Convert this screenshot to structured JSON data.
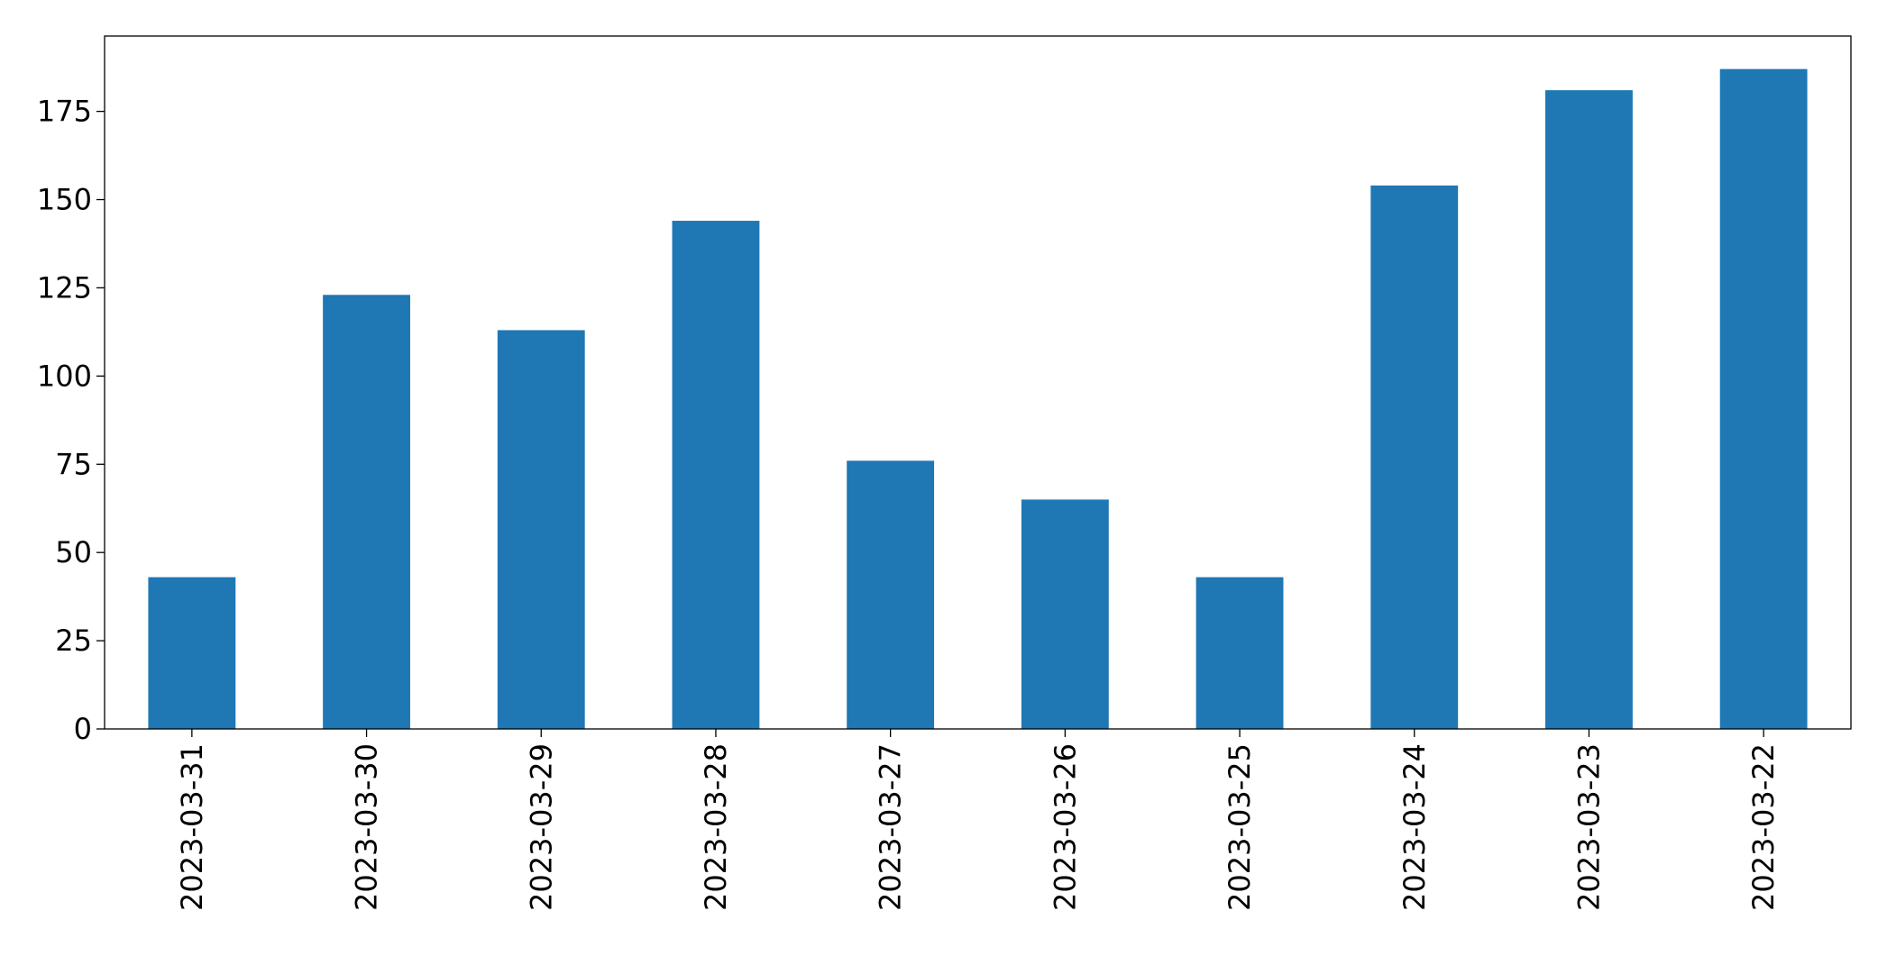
{
  "chart_data": {
    "type": "bar",
    "categories": [
      "2023-03-31",
      "2023-03-30",
      "2023-03-29",
      "2023-03-28",
      "2023-03-27",
      "2023-03-26",
      "2023-03-25",
      "2023-03-24",
      "2023-03-23",
      "2023-03-22"
    ],
    "values": [
      43,
      123,
      113,
      144,
      76,
      65,
      43,
      154,
      181,
      187
    ],
    "color": "#1f77b4",
    "ylim": [
      0,
      196.35
    ],
    "yticks": [
      0,
      25,
      50,
      75,
      100,
      125,
      150,
      175
    ],
    "grid": false
  }
}
